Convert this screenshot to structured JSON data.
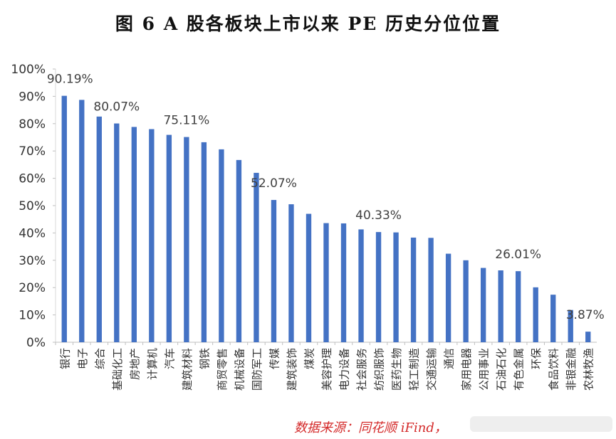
{
  "chart_data": {
    "type": "bar",
    "title": "图 6 A 股各板块上市以来 PE 历史分位位置",
    "categories": [
      "银行",
      "电子",
      "综合",
      "基础化工",
      "房地产",
      "计算机",
      "汽车",
      "建筑材料",
      "钢铁",
      "商贸零售",
      "机械设备",
      "国防军工",
      "传媒",
      "建筑装饰",
      "煤炭",
      "美容护理",
      "电力设备",
      "社会服务",
      "纺织服饰",
      "医药生物",
      "轻工制造",
      "交通运输",
      "通信",
      "家用电器",
      "公用事业",
      "石油石化",
      "有色金属",
      "环保",
      "食品饮料",
      "非银金融",
      "农林牧渔"
    ],
    "values": [
      90.19,
      88.7,
      82.6,
      80.07,
      78.8,
      78.0,
      75.9,
      75.11,
      73.2,
      70.6,
      66.7,
      62.0,
      52.07,
      50.5,
      47.0,
      43.6,
      43.5,
      41.3,
      40.33,
      40.2,
      38.3,
      38.2,
      32.4,
      30.0,
      27.2,
      26.3,
      26.01,
      20.1,
      17.4,
      11.8,
      3.87
    ],
    "data_labels": [
      {
        "index": 0,
        "text": "90.19%"
      },
      {
        "index": 3,
        "text": "80.07%"
      },
      {
        "index": 7,
        "text": "75.11%"
      },
      {
        "index": 12,
        "text": "52.07%"
      },
      {
        "index": 18,
        "text": "40.33%"
      },
      {
        "index": 26,
        "text": "26.01%"
      },
      {
        "index": 30,
        "text": "3.87%"
      }
    ],
    "ylim": [
      0,
      100
    ],
    "yticks": [
      "0%",
      "10%",
      "20%",
      "30%",
      "40%",
      "50%",
      "60%",
      "70%",
      "80%",
      "90%",
      "100%"
    ],
    "grid": false,
    "bar_color": "#4472c4"
  },
  "source": "数据来源：同花顺 iFind，"
}
